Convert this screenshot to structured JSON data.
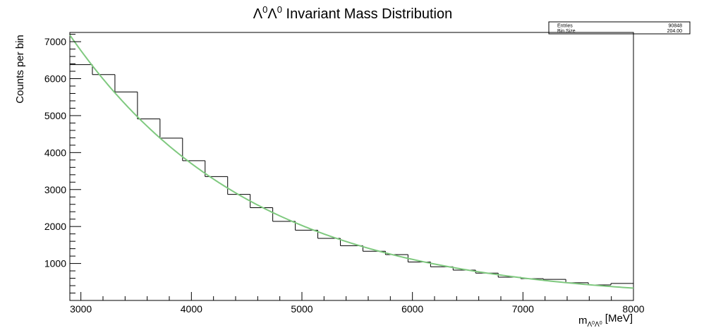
{
  "chart_data": {
    "type": "histogram",
    "title": {
      "main": "Λ",
      "sup1": "0",
      "mid": "Λ",
      "sup2": "0",
      "rest": " Invariant Mass Distribution"
    },
    "xlabel": {
      "m": "m",
      "sub_a": "Λ",
      "sub_a_sup": "0",
      "sub_b": "Λ",
      "sub_b_sup": "0",
      "unit": " [MeV]"
    },
    "ylabel": "Counts per bin",
    "xlim": [
      2900,
      8000
    ],
    "ylim": [
      0,
      7250
    ],
    "xticks": [
      3000,
      4000,
      5000,
      6000,
      7000,
      8000
    ],
    "yticks": [
      1000,
      2000,
      3000,
      4000,
      5000,
      6000,
      7000
    ],
    "bin_edges": [
      2900,
      3104,
      3308,
      3512,
      3716,
      3920,
      4124,
      4328,
      4532,
      4736,
      4940,
      5144,
      5348,
      5552,
      5756,
      5960,
      6164,
      6368,
      6572,
      6776,
      6980,
      7184,
      7388,
      7592,
      7796,
      8000
    ],
    "counts": [
      6380,
      6110,
      5640,
      4910,
      4390,
      3780,
      3350,
      2870,
      2510,
      2140,
      1900,
      1680,
      1480,
      1330,
      1240,
      1040,
      910,
      820,
      740,
      630,
      590,
      570,
      480,
      420,
      460
    ],
    "fit": {
      "color": "#7fc97f",
      "amplitude": 7180,
      "decay_per_mev": 0.000602,
      "x0": 2900
    },
    "hist_color": "#000000",
    "grid": false,
    "stats_box": {
      "placement": "top-right",
      "rows": [
        {
          "label": "Entries",
          "value": "90848"
        },
        {
          "label": "Bin Size",
          "value": "204.00"
        }
      ]
    }
  }
}
